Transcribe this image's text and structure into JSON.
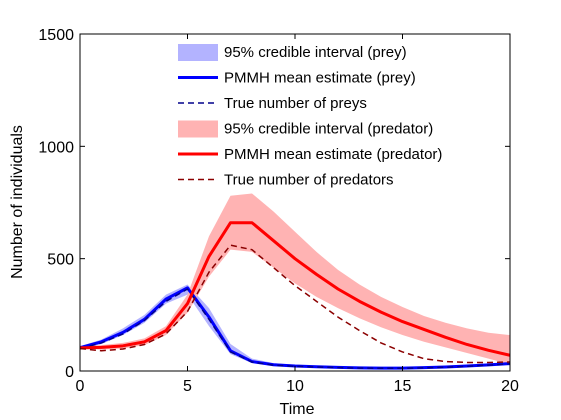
{
  "chart_data": {
    "type": "line",
    "xlabel": "Time",
    "ylabel": "Number of individuals",
    "xlim": [
      0,
      20
    ],
    "ylim": [
      0,
      1500
    ],
    "xticks": [
      0,
      5,
      10,
      15,
      20
    ],
    "yticks": [
      0,
      500,
      1000,
      1500
    ],
    "grid": false,
    "legend_position": "top-right",
    "x": [
      0,
      1,
      2,
      3,
      4,
      5,
      6,
      7,
      8,
      9,
      10,
      11,
      12,
      13,
      14,
      15,
      16,
      17,
      18,
      19,
      20
    ],
    "series": [
      {
        "name": "95% credible interval (prey)",
        "kind": "band",
        "color": "#b3b3ff",
        "lower": [
          97,
          120,
          160,
          215,
          300,
          340,
          200,
          75,
          35,
          22,
          18,
          15,
          12,
          10,
          10,
          10,
          12,
          14,
          18,
          22,
          28
        ],
        "upper": [
          110,
          140,
          190,
          250,
          340,
          385,
          280,
          120,
          55,
          35,
          28,
          24,
          20,
          18,
          17,
          17,
          20,
          24,
          28,
          32,
          40
        ]
      },
      {
        "name": "PMMH mean estimate (prey)",
        "kind": "line",
        "color": "#0000ff",
        "dash": "solid",
        "values": [
          104,
          130,
          172,
          230,
          320,
          370,
          240,
          90,
          42,
          28,
          22,
          19,
          16,
          14,
          13,
          13,
          15,
          18,
          22,
          27,
          33
        ]
      },
      {
        "name": "True number of preys",
        "kind": "line",
        "color": "#00008b",
        "dash": "dashed",
        "values": [
          100,
          125,
          165,
          225,
          310,
          365,
          230,
          85,
          40,
          26,
          21,
          18,
          15,
          13,
          12,
          12,
          14,
          17,
          21,
          26,
          32
        ]
      },
      {
        "name": "95% credible interval (predator)",
        "kind": "band",
        "color": "#ffb3b3",
        "lower": [
          100,
          95,
          100,
          115,
          160,
          260,
          420,
          540,
          530,
          460,
          390,
          330,
          280,
          235,
          195,
          160,
          130,
          105,
          80,
          55,
          30
        ],
        "upper": [
          110,
          115,
          125,
          145,
          200,
          340,
          600,
          780,
          790,
          710,
          620,
          530,
          450,
          385,
          330,
          285,
          245,
          215,
          190,
          170,
          160
        ]
      },
      {
        "name": "PMMH mean estimate (predator)",
        "kind": "line",
        "color": "#ff0000",
        "dash": "solid",
        "values": [
          103,
          105,
          112,
          130,
          180,
          300,
          510,
          660,
          660,
          580,
          500,
          430,
          365,
          310,
          262,
          220,
          185,
          150,
          118,
          92,
          70
        ]
      },
      {
        "name": "True number of predators",
        "kind": "line",
        "color": "#8b0000",
        "dash": "dashed",
        "values": [
          100,
          90,
          98,
          118,
          165,
          265,
          440,
          560,
          540,
          460,
          380,
          310,
          240,
          180,
          125,
          85,
          55,
          42,
          38,
          38,
          40
        ]
      }
    ]
  }
}
